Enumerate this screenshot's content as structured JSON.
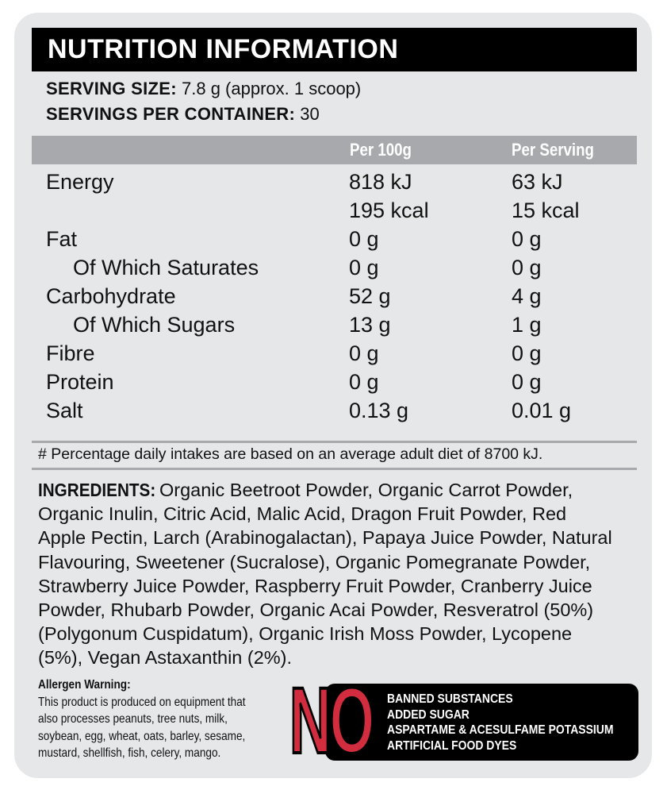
{
  "header": {
    "title": "NUTRITION INFORMATION"
  },
  "serving": {
    "size_label": "SERVING SIZE:",
    "size_value": "7.8 g (approx. 1 scoop)",
    "per_container_label": "SERVINGS PER CONTAINER:",
    "per_container_value": "30"
  },
  "table": {
    "columns": [
      "",
      "Per 100g",
      "Per Serving"
    ],
    "rows": [
      {
        "label": "Energy",
        "per100": "818 kJ",
        "perServing": "63 kJ",
        "indent": false
      },
      {
        "label": "",
        "per100": "195 kcal",
        "perServing": "15 kcal",
        "indent": false
      },
      {
        "label": "Fat",
        "per100": "0 g",
        "perServing": "0 g",
        "indent": false
      },
      {
        "label": "Of Which Saturates",
        "per100": "0 g",
        "perServing": "0 g",
        "indent": true
      },
      {
        "label": "Carbohydrate",
        "per100": "52 g",
        "perServing": "4 g",
        "indent": false
      },
      {
        "label": "Of Which Sugars",
        "per100": "13 g",
        "perServing": "1 g",
        "indent": true
      },
      {
        "label": "Fibre",
        "per100": "0 g",
        "perServing": "0 g",
        "indent": false
      },
      {
        "label": "Protein",
        "per100": "0 g",
        "perServing": "0 g",
        "indent": false
      },
      {
        "label": "Salt",
        "per100": "0.13 g",
        "perServing": "0.01 g",
        "indent": false
      }
    ]
  },
  "footnote": "# Percentage daily intakes are based on an average adult diet of 8700 kJ.",
  "ingredients": {
    "label": "INGREDIENTS:",
    "lines": [
      " Organic Beetroot Powder, Organic Carrot Powder,",
      "Organic Inulin, Citric Acid, Malic Acid, Dragon Fruit Powder, Red",
      "Apple Pectin, Larch (Arabinogalactan), Papaya Juice Powder, Natural",
      "Flavouring, Sweetener (Sucralose), Organic Pomegranate Powder,",
      "Strawberry Juice Powder, Raspberry Fruit Powder, Cranberry Juice",
      "Powder, Rhubarb Powder, Organic Acai Powder, Resveratrol (50%)",
      "(Polygonum Cuspidatum), Organic Irish Moss Powder, Lycopene",
      "(5%), Vegan Astaxanthin (2%)."
    ]
  },
  "allergen": {
    "title": "Allergen Warning:",
    "lines": [
      "This product is produced on equipment that",
      "also processes peanuts, tree nuts, milk,",
      "soybean, egg, wheat, oats, barley, sesame,",
      "mustard, shellfish, fish, celery, mango."
    ]
  },
  "no_badge": {
    "word": "NO",
    "items": [
      "BANNED SUBSTANCES",
      "ADDED SUGAR",
      "ASPARTAME & ACESULFAME POTASSIUM",
      "ARTIFICIAL FOOD DYES"
    ],
    "colors": {
      "word": "#d12d3f",
      "box": "#000000"
    }
  }
}
